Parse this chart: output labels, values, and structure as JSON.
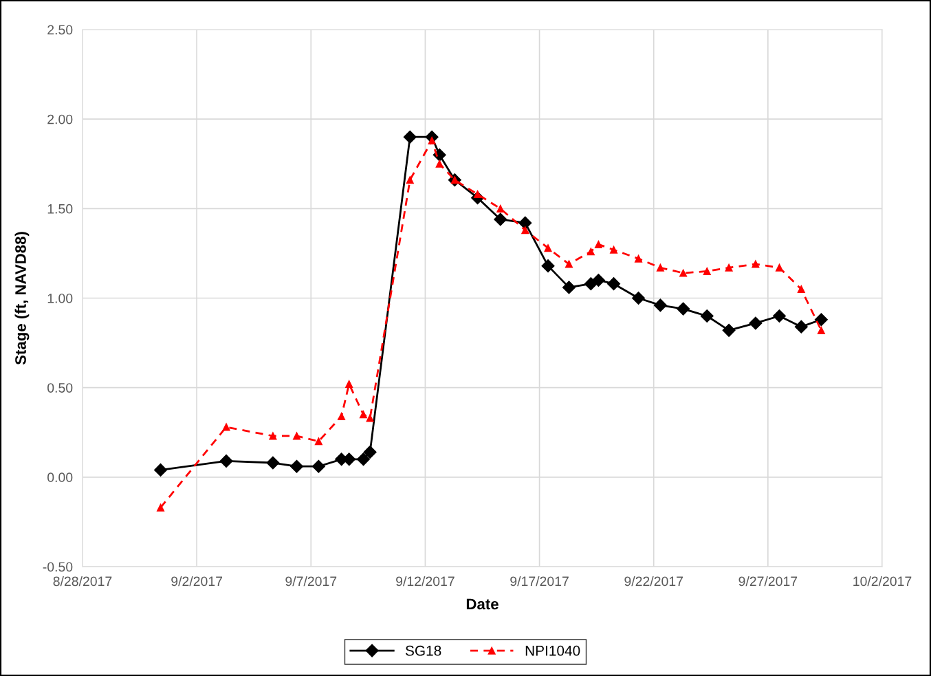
{
  "chart_data": {
    "type": "line",
    "xlabel": "Date",
    "ylabel": "Stage (ft, NAVD88)",
    "x": [
      "2017-08-31T10:00",
      "2017-09-03T07:00",
      "2017-09-05T08:00",
      "2017-09-06T09:00",
      "2017-09-07T08:00",
      "2017-09-08T08:00",
      "2017-09-08T16:00",
      "2017-09-09T07:00",
      "2017-09-09T14:00",
      "2017-09-11T08:00",
      "2017-09-12T07:00",
      "2017-09-12T15:00",
      "2017-09-13T07:00",
      "2017-09-14T07:00",
      "2017-09-15T07:00",
      "2017-09-16T09:00",
      "2017-09-17T09:00",
      "2017-09-18T07:00",
      "2017-09-19T06:00",
      "2017-09-19T14:00",
      "2017-09-20T06:00",
      "2017-09-21T08:00",
      "2017-09-22T07:00",
      "2017-09-23T07:00",
      "2017-09-24T08:00",
      "2017-09-25T07:00",
      "2017-09-26T11:00",
      "2017-09-27T12:00",
      "2017-09-28T11:00",
      "2017-09-29T08:00"
    ],
    "series": [
      {
        "name": "SG18",
        "color": "#000000",
        "marker": "diamond",
        "line_style": "solid",
        "values": [
          0.04,
          0.09,
          0.08,
          0.06,
          0.06,
          0.1,
          0.1,
          0.1,
          0.14,
          1.9,
          1.9,
          1.8,
          1.66,
          1.56,
          1.44,
          1.42,
          1.18,
          1.06,
          1.08,
          1.1,
          1.08,
          1.0,
          0.96,
          0.94,
          0.9,
          0.82,
          0.86,
          0.9,
          0.84,
          0.88
        ]
      },
      {
        "name": "NPI1040",
        "color": "#ff0000",
        "marker": "triangle",
        "line_style": "dashed",
        "values": [
          -0.17,
          0.28,
          0.23,
          0.23,
          0.2,
          0.34,
          0.52,
          0.35,
          0.33,
          1.66,
          1.88,
          1.75,
          1.66,
          1.58,
          1.5,
          1.38,
          1.28,
          1.19,
          1.26,
          1.3,
          1.27,
          1.22,
          1.17,
          1.14,
          1.15,
          1.17,
          1.19,
          1.17,
          1.05,
          0.82
        ]
      }
    ],
    "xlim": [
      "2017-08-28",
      "2017-10-02"
    ],
    "xticks": [
      {
        "value": "2017-08-28",
        "label": "8/28/2017"
      },
      {
        "value": "2017-09-02",
        "label": "9/2/2017"
      },
      {
        "value": "2017-09-07",
        "label": "9/7/2017"
      },
      {
        "value": "2017-09-12",
        "label": "9/12/2017"
      },
      {
        "value": "2017-09-17",
        "label": "9/17/2017"
      },
      {
        "value": "2017-09-22",
        "label": "9/22/2017"
      },
      {
        "value": "2017-09-27",
        "label": "9/27/2017"
      },
      {
        "value": "2017-10-02",
        "label": "10/2/2017"
      }
    ],
    "ylim": [
      -0.5,
      2.5
    ],
    "yticks": [
      {
        "value": -0.5,
        "label": "-0.50"
      },
      {
        "value": 0,
        "label": "0.00"
      },
      {
        "value": 0.5,
        "label": "0.50"
      },
      {
        "value": 1,
        "label": "1.00"
      },
      {
        "value": 1.5,
        "label": "1.50"
      },
      {
        "value": 2,
        "label": "2.00"
      },
      {
        "value": 2.5,
        "label": "2.50"
      }
    ],
    "grid": true,
    "legend": "bottom"
  }
}
